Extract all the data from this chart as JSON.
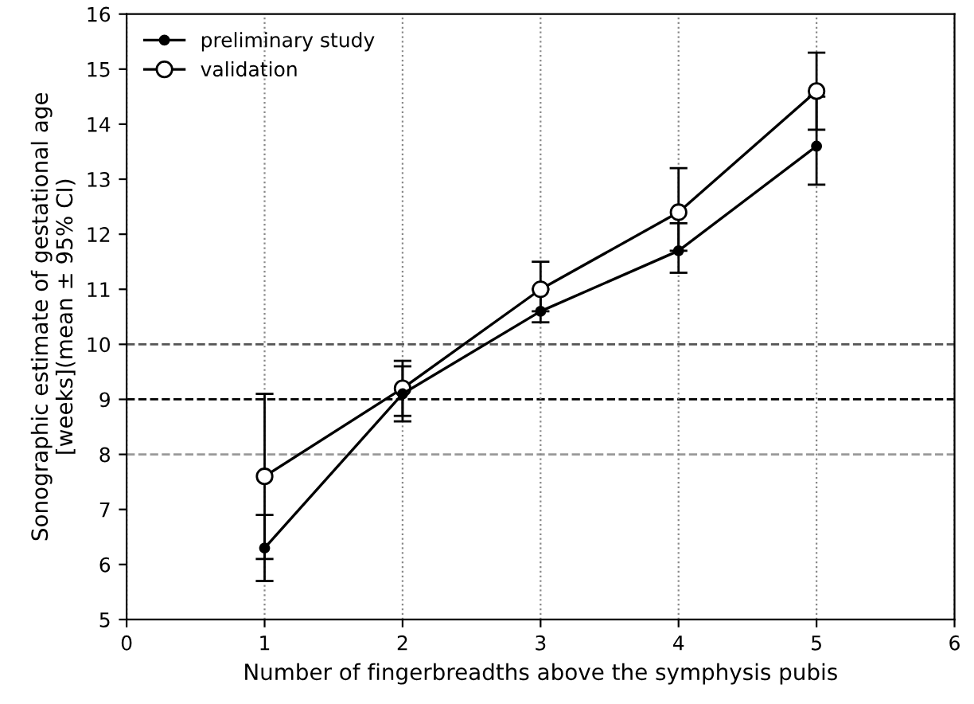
{
  "chart_data": {
    "type": "line",
    "xlabel": "Number of fingerbreadths above the symphysis pubis",
    "ylabel": "Sonographic estimate of gestational age\n[weeks](mean ± 95% CI)",
    "x": [
      1,
      2,
      3,
      4,
      5
    ],
    "series": [
      {
        "name": "preliminary study",
        "color": "#000000",
        "values": [
          6.3,
          9.1,
          10.6,
          11.7,
          13.6
        ],
        "errors": [
          [
            5.7,
            6.9
          ],
          [
            8.6,
            9.6
          ],
          [
            10.4,
            11.0
          ],
          [
            11.3,
            12.2
          ],
          [
            12.9,
            14.5
          ]
        ]
      },
      {
        "name": "validation",
        "color": "#000000",
        "values": [
          7.6,
          9.2,
          11.0,
          12.4,
          14.6
        ],
        "errors": [
          [
            6.1,
            9.1
          ],
          [
            8.7,
            9.7
          ],
          [
            10.6,
            11.5
          ],
          [
            11.7,
            13.2
          ],
          [
            13.9,
            15.3
          ]
        ]
      }
    ],
    "xlim": [
      0,
      6
    ],
    "xticks": [
      0,
      1,
      2,
      3,
      4,
      5,
      6
    ],
    "ylim": [
      5,
      16
    ],
    "yticks": [
      5,
      6,
      7,
      8,
      9,
      10,
      11,
      12,
      13,
      14,
      15,
      16
    ],
    "ref_lines": [
      {
        "axis": "y",
        "value": 8,
        "color": "#999999",
        "line_style": "dashed"
      },
      {
        "axis": "y",
        "value": 9,
        "color": "#000000",
        "line_style": "dashed"
      },
      {
        "axis": "y",
        "value": 10,
        "color": "#555555",
        "line_style": "dashed"
      }
    ],
    "grid": "x",
    "legend": "top left",
    "marker": "circle",
    "line_style": "solid"
  }
}
